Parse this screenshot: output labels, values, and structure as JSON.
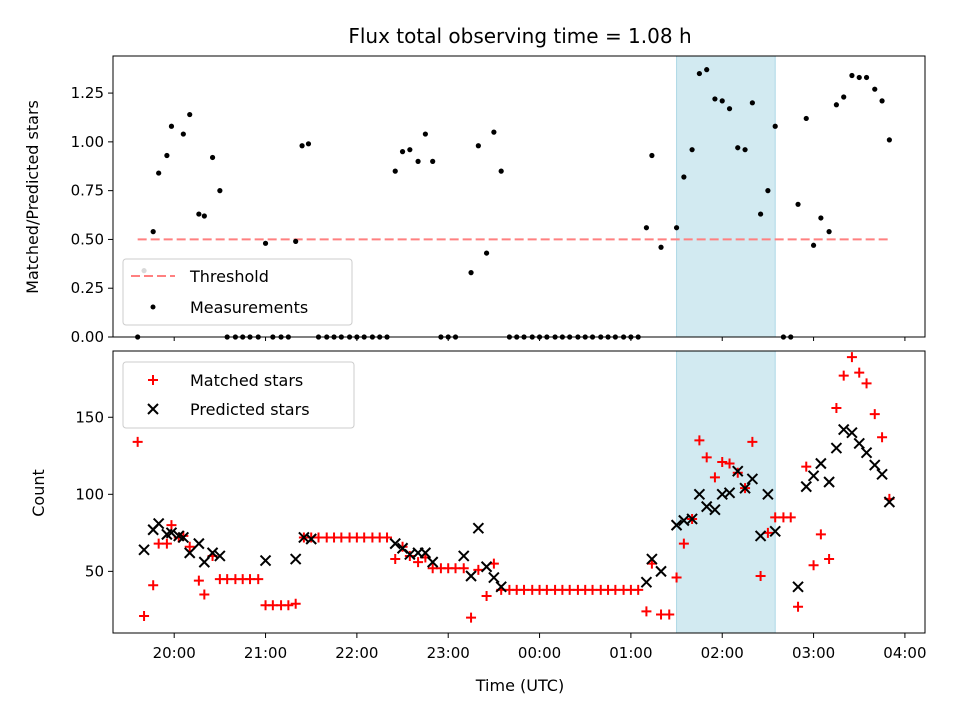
{
  "chart_data": [
    {
      "type": "scatter",
      "title": "Flux total observing time = 1.08 h",
      "xlabel": "",
      "ylabel": "Matched/Predicted stars",
      "xlim": [
        19.33,
        28.22
      ],
      "ylim": [
        0,
        1.44
      ],
      "yticks": [
        "0.00",
        "0.25",
        "0.50",
        "0.75",
        "1.00",
        "1.25"
      ],
      "grid": false,
      "legend_position": "lower-left",
      "highlight_span": [
        25.5,
        26.58
      ],
      "highlight_color": "#add8e6",
      "threshold": {
        "name": "Threshold",
        "value": 0.5,
        "x": [
          19.6,
          27.83
        ],
        "color": "#ff8080"
      },
      "series": [
        {
          "name": "Measurements",
          "marker": "dot",
          "color": "#000000",
          "x": [
            19.6,
            19.67,
            19.77,
            19.83,
            19.92,
            19.97,
            20.1,
            20.17,
            20.27,
            20.33,
            20.42,
            20.5,
            20.58,
            20.67,
            20.75,
            20.83,
            20.92,
            21.0,
            21.08,
            21.17,
            21.25,
            21.33,
            21.4,
            21.47,
            21.58,
            21.67,
            21.75,
            21.83,
            21.92,
            22.0,
            22.08,
            22.17,
            22.25,
            22.33,
            22.42,
            22.5,
            22.58,
            22.67,
            22.75,
            22.83,
            22.92,
            23.0,
            23.08,
            23.25,
            23.33,
            23.42,
            23.5,
            23.58,
            23.67,
            23.75,
            23.83,
            23.92,
            24.0,
            24.08,
            24.17,
            24.25,
            24.33,
            24.42,
            24.5,
            24.58,
            24.67,
            24.75,
            24.83,
            24.92,
            25.0,
            25.08,
            25.17,
            25.23,
            25.33,
            25.5,
            25.58,
            25.67,
            25.75,
            25.83,
            25.92,
            26.0,
            26.08,
            26.17,
            26.25,
            26.33,
            26.42,
            26.5,
            26.58,
            26.67,
            26.75,
            26.83,
            26.92,
            27.0,
            27.08,
            27.17,
            27.25,
            27.33,
            27.42,
            27.5,
            27.58,
            27.67,
            27.75,
            27.83
          ],
          "y": [
            0.0,
            0.34,
            0.54,
            0.84,
            0.93,
            1.08,
            1.04,
            1.14,
            0.63,
            0.62,
            0.92,
            0.75,
            0.0,
            0.0,
            0.0,
            0.0,
            0.0,
            0.48,
            0.0,
            0.0,
            0.0,
            0.49,
            0.98,
            0.99,
            0.0,
            0.0,
            0.0,
            0.0,
            0.0,
            0.0,
            0.0,
            0.0,
            0.0,
            0.0,
            0.85,
            0.95,
            0.96,
            0.9,
            1.04,
            0.9,
            0.0,
            0.0,
            0.0,
            0.33,
            0.98,
            0.43,
            1.05,
            0.85,
            0.0,
            0.0,
            0.0,
            0.0,
            0.0,
            0.0,
            0.0,
            0.0,
            0.0,
            0.0,
            0.0,
            0.0,
            0.0,
            0.0,
            0.0,
            0.0,
            0.0,
            0.0,
            0.56,
            0.93,
            0.46,
            0.56,
            0.82,
            0.96,
            1.35,
            1.37,
            1.22,
            1.21,
            1.17,
            0.97,
            0.96,
            1.2,
            0.63,
            0.75,
            1.08,
            0.0,
            0.0,
            0.68,
            1.12,
            0.47,
            0.61,
            0.54,
            1.19,
            1.23,
            1.34,
            1.33,
            1.33,
            1.27,
            1.21,
            1.01
          ]
        }
      ]
    },
    {
      "type": "scatter",
      "title": "",
      "xlabel": "Time (UTC)",
      "ylabel": "Count",
      "xlim": [
        19.33,
        28.22
      ],
      "ylim": [
        10,
        193
      ],
      "yticks": [
        "50",
        "100",
        "150"
      ],
      "xtick_labels": [
        "20:00",
        "21:00",
        "22:00",
        "23:00",
        "00:00",
        "01:00",
        "02:00",
        "03:00",
        "04:00"
      ],
      "grid": false,
      "legend_position": "upper-left",
      "highlight_span": [
        25.5,
        26.58
      ],
      "highlight_color": "#add8e6",
      "series": [
        {
          "name": "Matched stars",
          "marker": "plus",
          "color": "#ff0000",
          "x": [
            19.6,
            19.67,
            19.77,
            19.83,
            19.92,
            19.97,
            20.05,
            20.1,
            20.17,
            20.27,
            20.33,
            20.42,
            20.5,
            20.58,
            20.67,
            20.75,
            20.83,
            20.92,
            21.0,
            21.08,
            21.17,
            21.25,
            21.33,
            21.42,
            21.5,
            21.58,
            21.67,
            21.75,
            21.83,
            21.92,
            22.0,
            22.08,
            22.17,
            22.25,
            22.33,
            22.42,
            22.5,
            22.58,
            22.67,
            22.75,
            22.83,
            22.92,
            23.0,
            23.08,
            23.17,
            23.25,
            23.33,
            23.42,
            23.5,
            23.58,
            23.67,
            23.75,
            23.83,
            23.92,
            24.0,
            24.08,
            24.17,
            24.25,
            24.33,
            24.42,
            24.5,
            24.58,
            24.67,
            24.75,
            24.83,
            24.92,
            25.0,
            25.08,
            25.17,
            25.23,
            25.33,
            25.42,
            25.5,
            25.58,
            25.67,
            25.75,
            25.83,
            25.92,
            26.0,
            26.08,
            26.17,
            26.25,
            26.33,
            26.42,
            26.5,
            26.58,
            26.67,
            26.75,
            26.83,
            26.92,
            27.0,
            27.08,
            27.17,
            27.25,
            27.33,
            27.42,
            27.5,
            27.58,
            27.67,
            27.75,
            27.83
          ],
          "y": [
            134,
            21,
            41,
            68,
            68,
            80,
            72,
            73,
            66,
            44,
            35,
            60,
            45,
            45,
            45,
            45,
            45,
            45,
            28,
            28,
            28,
            28,
            29,
            72,
            72,
            72,
            72,
            72,
            72,
            72,
            72,
            72,
            72,
            72,
            72,
            58,
            66,
            60,
            56,
            59,
            52,
            52,
            52,
            52,
            52,
            20,
            51,
            34,
            55,
            38,
            38,
            38,
            38,
            38,
            38,
            38,
            38,
            38,
            38,
            38,
            38,
            38,
            38,
            38,
            38,
            38,
            38,
            38,
            24,
            55,
            22,
            22,
            46,
            68,
            84,
            135,
            124,
            111,
            121,
            120,
            114,
            104,
            134,
            47,
            75,
            85,
            85,
            85,
            27,
            118,
            54,
            74,
            58,
            156,
            177,
            189,
            179,
            172,
            152,
            137,
            97
          ]
        },
        {
          "name": "Predicted stars",
          "marker": "x",
          "color": "#000000",
          "x": [
            19.67,
            19.77,
            19.83,
            19.92,
            19.97,
            20.05,
            20.1,
            20.17,
            20.27,
            20.33,
            20.42,
            20.5,
            21.0,
            21.33,
            21.42,
            21.5,
            22.42,
            22.5,
            22.58,
            22.67,
            22.75,
            22.83,
            23.17,
            23.25,
            23.33,
            23.42,
            23.5,
            23.58,
            25.17,
            25.23,
            25.33,
            25.5,
            25.58,
            25.67,
            25.75,
            25.83,
            25.92,
            26.0,
            26.08,
            26.17,
            26.25,
            26.33,
            26.42,
            26.5,
            26.58,
            26.83,
            26.92,
            27.0,
            27.08,
            27.17,
            27.25,
            27.33,
            27.42,
            27.5,
            27.58,
            27.67,
            27.75,
            27.83
          ],
          "y": [
            64,
            77,
            81,
            74,
            75,
            73,
            72,
            62,
            68,
            56,
            62,
            60,
            57,
            58,
            72,
            71,
            68,
            65,
            61,
            62,
            62,
            56,
            60,
            47,
            78,
            53,
            46,
            40,
            43,
            58,
            50,
            80,
            83,
            84,
            100,
            92,
            90,
            100,
            101,
            115,
            104,
            110,
            73,
            100,
            76,
            40,
            105,
            112,
            120,
            108,
            130,
            142,
            140,
            133,
            127,
            119,
            113,
            95
          ]
        }
      ]
    }
  ]
}
